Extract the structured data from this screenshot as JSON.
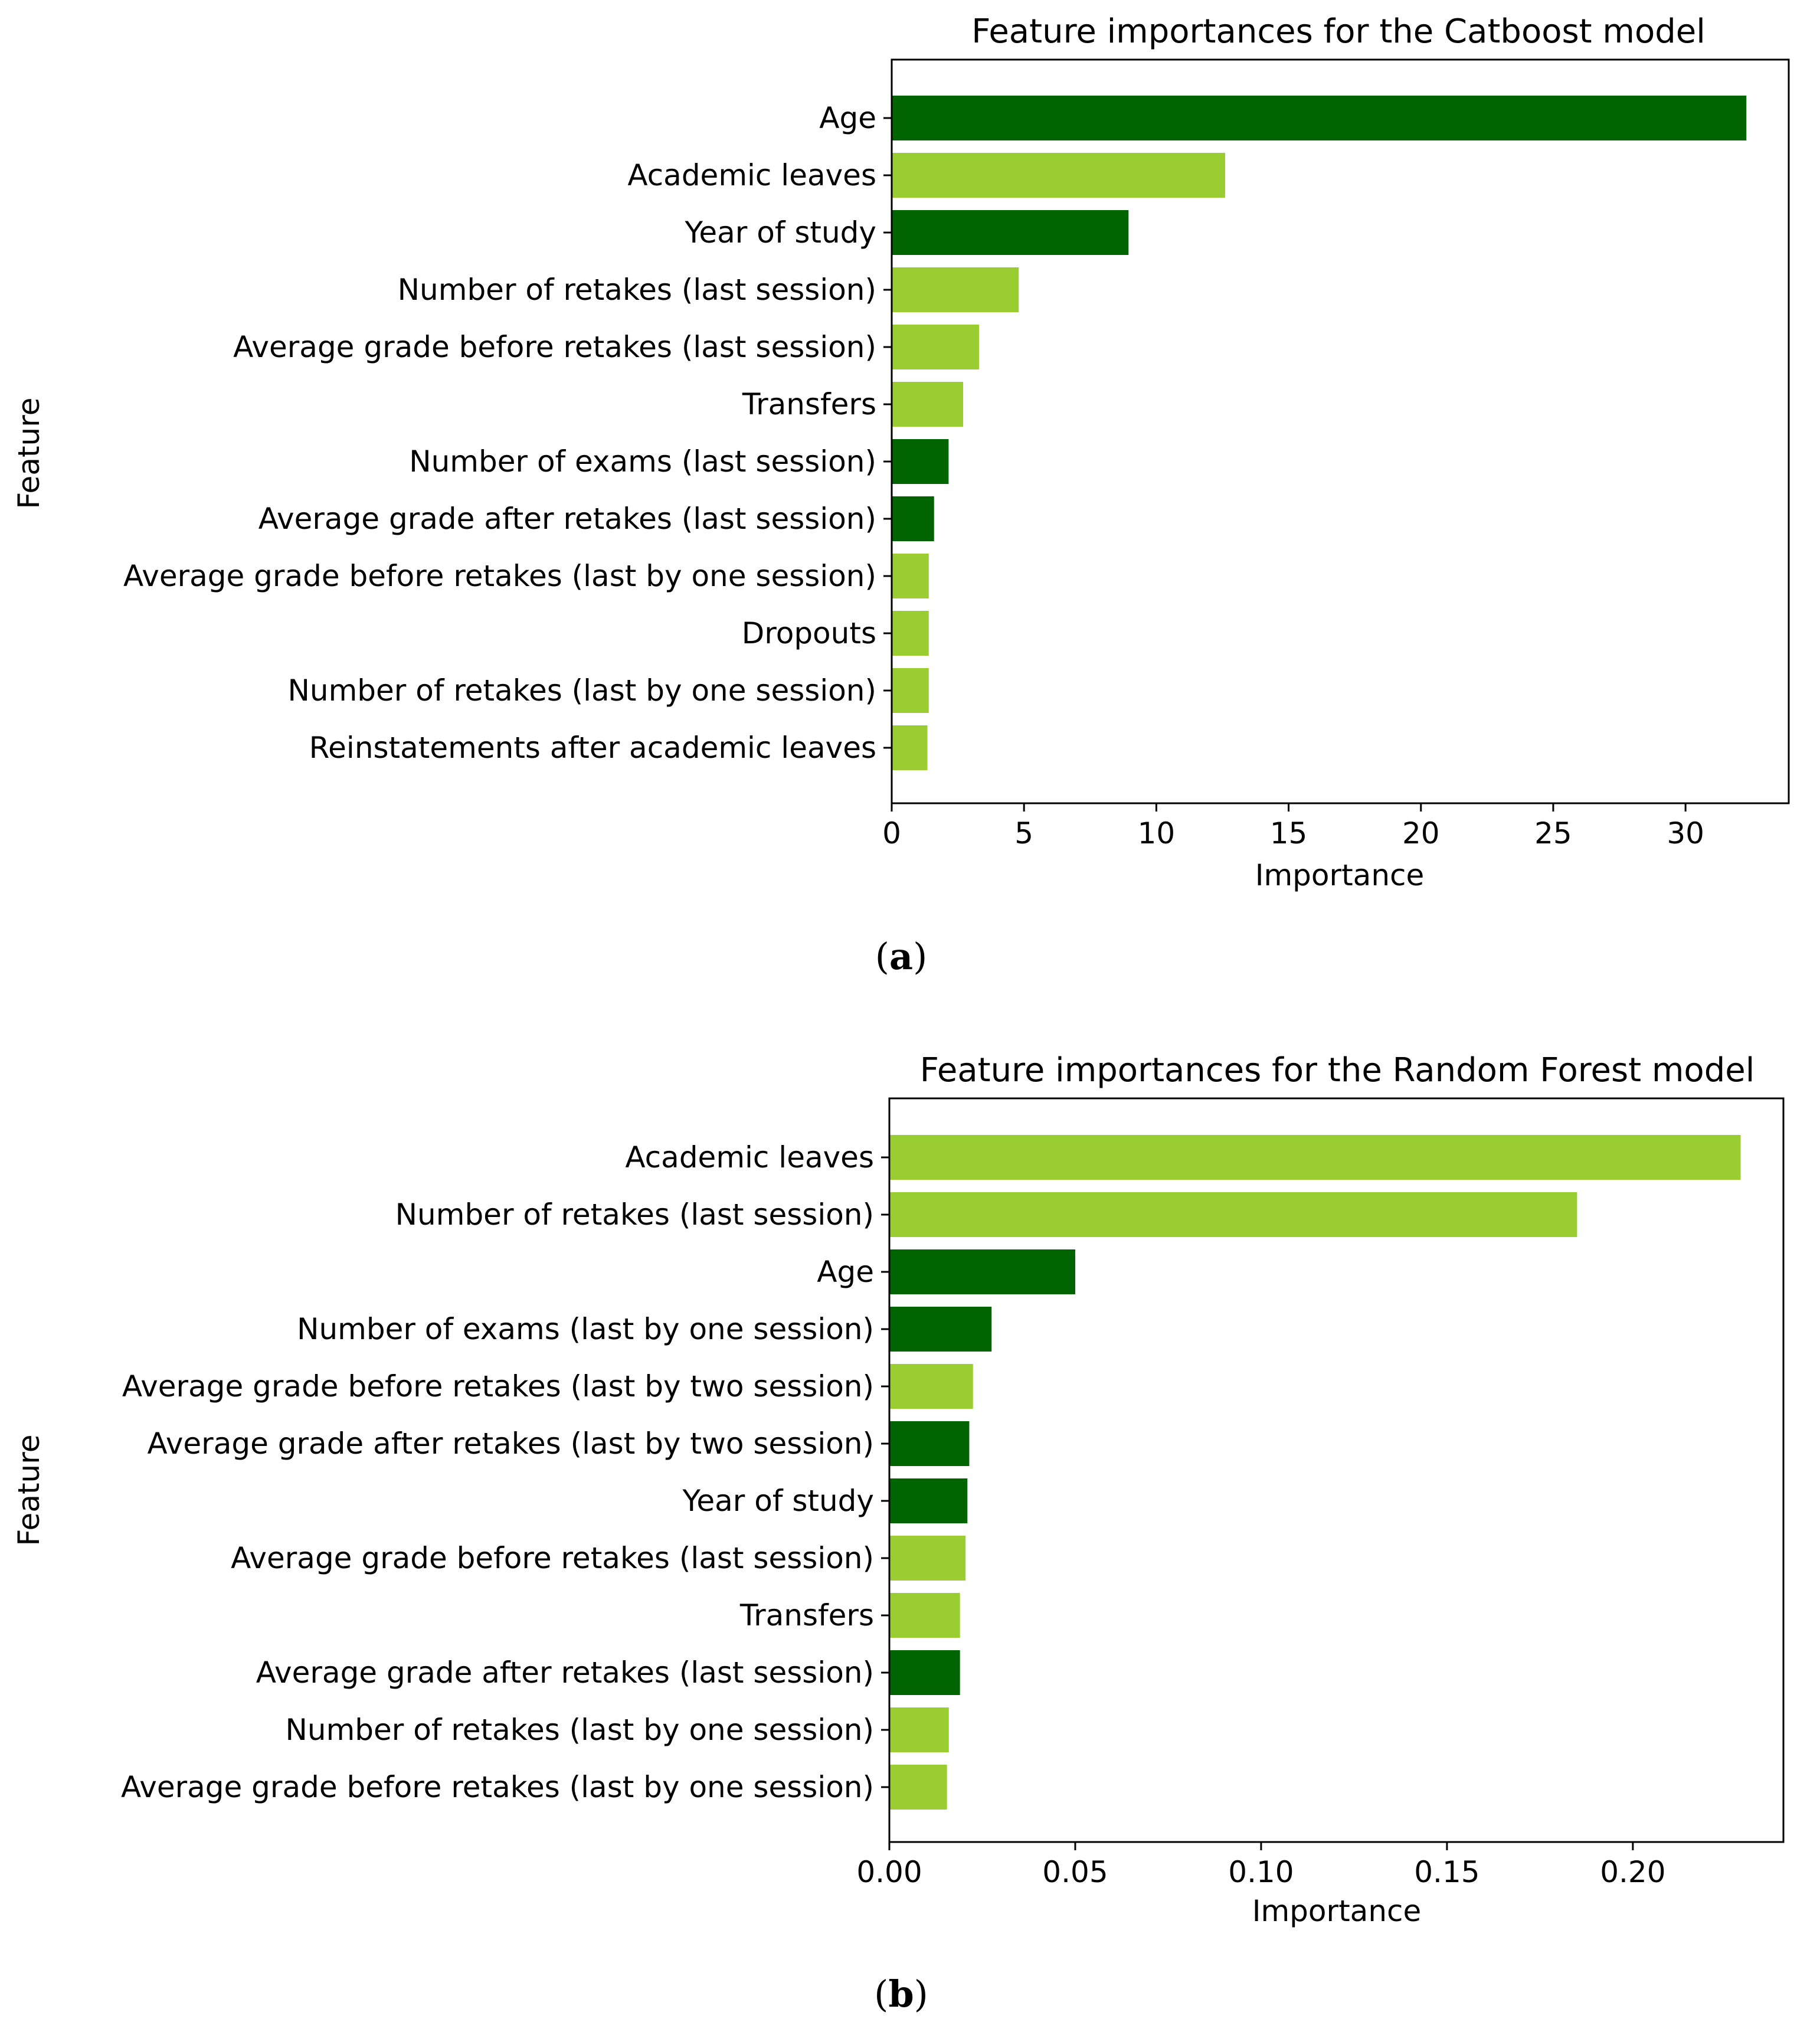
{
  "figure": {
    "caption_a": "(a)",
    "caption_a_open": "(",
    "caption_a_letter": "a",
    "caption_a_close": ")",
    "caption_b": "(b)",
    "caption_b_open": "(",
    "caption_b_letter": "b",
    "caption_b_close": ")"
  },
  "colors": {
    "dark": "#006400",
    "light": "#9ACD32",
    "axis": "#000000",
    "background": "#ffffff"
  },
  "chart_data": [
    {
      "type": "bar",
      "orientation": "horizontal",
      "title": "Feature importances for the Catboost model",
      "xlabel": "Importance",
      "ylabel": "Feature",
      "xlim": [
        0,
        33.9
      ],
      "xticks": [
        0,
        5,
        10,
        15,
        20,
        25,
        30
      ],
      "xtick_labels": [
        "0",
        "5",
        "10",
        "15",
        "20",
        "25",
        "30"
      ],
      "categories": [
        "Age",
        "Academic leaves",
        "Year of study",
        "Number of retakes (last session)",
        "Average grade before retakes (last session)",
        "Transfers",
        "Number of exams (last session)",
        "Average grade after retakes (last session)",
        "Average grade before retakes (last by one session)",
        "Dropouts",
        "Number of retakes (last by one session)",
        "Reinstatements after academic leaves "
      ],
      "values": [
        32.3,
        12.6,
        8.95,
        4.8,
        3.3,
        2.7,
        2.15,
        1.6,
        1.4,
        1.4,
        1.4,
        1.35
      ],
      "bar_colors": [
        "dark",
        "light",
        "dark",
        "light",
        "light",
        "light",
        "dark",
        "dark",
        "light",
        "light",
        "light",
        "light"
      ]
    },
    {
      "type": "bar",
      "orientation": "horizontal",
      "title": "Feature importances for the Random Forest model",
      "xlabel": "Importance",
      "ylabel": "Feature",
      "xlim": [
        0,
        0.2405
      ],
      "xticks": [
        0,
        0.05,
        0.1,
        0.15,
        0.2
      ],
      "xtick_labels": [
        "0.00",
        "0.05",
        "0.10",
        "0.15",
        "0.20"
      ],
      "categories": [
        "Academic leaves",
        "Number of retakes (last session)",
        "Age",
        "Number of exams (last by one session)",
        "Average grade before retakes (last by two session)",
        "Average grade after retakes (last by two session)",
        "Year of study",
        "Average grade before retakes (last session)",
        "Transfers",
        "Average grade after retakes (last session)",
        "Number of retakes (last by one session)",
        "Average grade before retakes (last by one session)"
      ],
      "values": [
        0.229,
        0.185,
        0.05,
        0.0275,
        0.0225,
        0.0215,
        0.021,
        0.0205,
        0.019,
        0.019,
        0.016,
        0.0155
      ],
      "bar_colors": [
        "light",
        "light",
        "dark",
        "dark",
        "light",
        "dark",
        "dark",
        "light",
        "light",
        "dark",
        "light",
        "light"
      ]
    }
  ]
}
